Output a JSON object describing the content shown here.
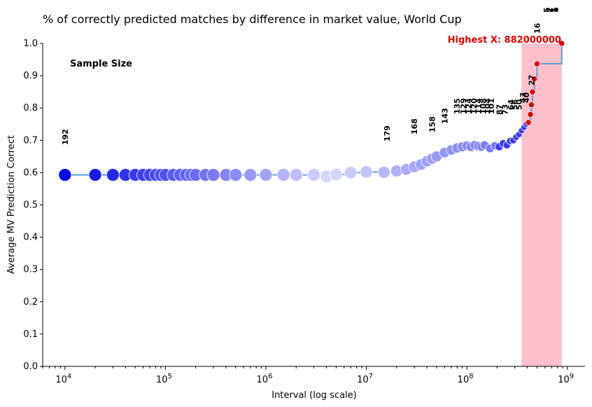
{
  "chart_data": {
    "type": "scatter",
    "title": "% of correctly predicted matches by difference in market value, World Cup",
    "xlabel": "Interval (log scale)",
    "ylabel": "Average MV Prediction Correct",
    "xscale": "log",
    "xlim": [
      6000,
      1500000000
    ],
    "ylim": [
      0,
      1.0
    ],
    "yticks": [
      "0.0",
      "0.1",
      "0.2",
      "0.3",
      "0.4",
      "0.5",
      "0.6",
      "0.7",
      "0.8",
      "0.9",
      "1.0"
    ],
    "xticks": [
      {
        "value": 10000,
        "base": "10",
        "exp": "4"
      },
      {
        "value": 100000,
        "base": "10",
        "exp": "5"
      },
      {
        "value": 1000000,
        "base": "10",
        "exp": "6"
      },
      {
        "value": 10000000,
        "base": "10",
        "exp": "7"
      },
      {
        "value": 100000000,
        "base": "10",
        "exp": "8"
      },
      {
        "value": 1000000000,
        "base": "10",
        "exp": "9"
      }
    ],
    "sample_size_label": "Sample Size",
    "highest_label": "Highest X: 882000000",
    "highlight_range": [
      350000000,
      882000000
    ],
    "highlight_color": "#ffc0cb",
    "line_color": "#5b9bd5",
    "point_color_high": "#0000ee",
    "point_color_low": "#e6e6fa",
    "red_color": "#e00000",
    "points": [
      {
        "x": 10000,
        "y": 0.593,
        "n": 192
      },
      {
        "x": 20000,
        "y": 0.593,
        "n": 192
      },
      {
        "x": 30000,
        "y": 0.593,
        "n": 192
      },
      {
        "x": 40000,
        "y": 0.593,
        "n": 192
      },
      {
        "x": 50000,
        "y": 0.593,
        "n": 192
      },
      {
        "x": 60000,
        "y": 0.593,
        "n": 192
      },
      {
        "x": 70000,
        "y": 0.593,
        "n": 192
      },
      {
        "x": 80000,
        "y": 0.593,
        "n": 192
      },
      {
        "x": 90000,
        "y": 0.593,
        "n": 192
      },
      {
        "x": 100000,
        "y": 0.593,
        "n": 192
      },
      {
        "x": 120000,
        "y": 0.593,
        "n": 192
      },
      {
        "x": 140000,
        "y": 0.593,
        "n": 192
      },
      {
        "x": 160000,
        "y": 0.593,
        "n": 192
      },
      {
        "x": 180000,
        "y": 0.593,
        "n": 192
      },
      {
        "x": 200000,
        "y": 0.593,
        "n": 192
      },
      {
        "x": 250000,
        "y": 0.593,
        "n": 192
      },
      {
        "x": 300000,
        "y": 0.593,
        "n": 192
      },
      {
        "x": 400000,
        "y": 0.593,
        "n": 192
      },
      {
        "x": 500000,
        "y": 0.593,
        "n": 192
      },
      {
        "x": 700000,
        "y": 0.593,
        "n": 192
      },
      {
        "x": 1000000,
        "y": 0.593,
        "n": 192
      },
      {
        "x": 1500000,
        "y": 0.593,
        "n": 192
      },
      {
        "x": 2000000,
        "y": 0.593,
        "n": 192
      },
      {
        "x": 3000000,
        "y": 0.593,
        "n": 192
      },
      {
        "x": 4000000,
        "y": 0.588,
        "n": 190
      },
      {
        "x": 5000000,
        "y": 0.594,
        "n": 189
      },
      {
        "x": 7000000,
        "y": 0.6,
        "n": 185
      },
      {
        "x": 10000000,
        "y": 0.602,
        "n": 183
      },
      {
        "x": 15000000,
        "y": 0.601,
        "n": 179
      },
      {
        "x": 20000000,
        "y": 0.605,
        "n": 175
      },
      {
        "x": 25000000,
        "y": 0.61,
        "n": 172
      },
      {
        "x": 30000000,
        "y": 0.618,
        "n": 168
      },
      {
        "x": 35000000,
        "y": 0.625,
        "n": 164
      },
      {
        "x": 40000000,
        "y": 0.635,
        "n": 160
      },
      {
        "x": 45000000,
        "y": 0.643,
        "n": 158
      },
      {
        "x": 50000000,
        "y": 0.65,
        "n": 154
      },
      {
        "x": 60000000,
        "y": 0.662,
        "n": 143
      },
      {
        "x": 70000000,
        "y": 0.67,
        "n": 138
      },
      {
        "x": 80000000,
        "y": 0.676,
        "n": 135
      },
      {
        "x": 90000000,
        "y": 0.68,
        "n": 129
      },
      {
        "x": 100000000,
        "y": 0.683,
        "n": 124
      },
      {
        "x": 110000000,
        "y": 0.68,
        "n": 120
      },
      {
        "x": 120000000,
        "y": 0.685,
        "n": 114
      },
      {
        "x": 130000000,
        "y": 0.682,
        "n": 110
      },
      {
        "x": 140000000,
        "y": 0.68,
        "n": 108
      },
      {
        "x": 150000000,
        "y": 0.685,
        "n": 104
      },
      {
        "x": 170000000,
        "y": 0.675,
        "n": 101
      },
      {
        "x": 190000000,
        "y": 0.683,
        "n": 94
      },
      {
        "x": 210000000,
        "y": 0.68,
        "n": 87
      },
      {
        "x": 230000000,
        "y": 0.69,
        "n": 80
      },
      {
        "x": 250000000,
        "y": 0.685,
        "n": 73
      },
      {
        "x": 270000000,
        "y": 0.698,
        "n": 68
      },
      {
        "x": 290000000,
        "y": 0.7,
        "n": 64
      },
      {
        "x": 310000000,
        "y": 0.71,
        "n": 56
      },
      {
        "x": 330000000,
        "y": 0.718,
        "n": 50
      },
      {
        "x": 350000000,
        "y": 0.73,
        "n": 46
      },
      {
        "x": 370000000,
        "y": 0.74,
        "n": 43
      },
      {
        "x": 390000000,
        "y": 0.75,
        "n": 40
      },
      {
        "x": 410000000,
        "y": 0.755,
        "n": 36
      },
      {
        "x": 430000000,
        "y": 0.78,
        "n": 30
      },
      {
        "x": 440000000,
        "y": 0.81,
        "n": 27
      },
      {
        "x": 450000000,
        "y": 0.85,
        "n": 22
      },
      {
        "x": 470000000,
        "y": 0.89,
        "n": 18
      },
      {
        "x": 500000000,
        "y": 0.937,
        "n": 16
      },
      {
        "x": 880000000,
        "y": 1.0,
        "n": 5
      }
    ],
    "annotations": [
      {
        "x": 10000,
        "text": "192"
      },
      {
        "x": 16000000,
        "text": "179"
      },
      {
        "x": 30000000,
        "text": "168"
      },
      {
        "x": 45000000,
        "text": "158"
      },
      {
        "x": 60000000,
        "text": "143"
      },
      {
        "x": 80000000,
        "text": "135"
      },
      {
        "x": 92000000,
        "text": "129"
      },
      {
        "x": 104000000,
        "text": "124"
      },
      {
        "x": 117000000,
        "text": "120"
      },
      {
        "x": 130000000,
        "text": "114"
      },
      {
        "x": 145000000,
        "text": "108"
      },
      {
        "x": 160000000,
        "text": "104"
      },
      {
        "x": 175000000,
        "text": "101"
      },
      {
        "x": 210000000,
        "text": "87"
      },
      {
        "x": 240000000,
        "text": "73"
      },
      {
        "x": 275000000,
        "text": "64"
      },
      {
        "x": 300000000,
        "text": "56"
      },
      {
        "x": 330000000,
        "text": "50"
      },
      {
        "x": 360000000,
        "text": "43"
      },
      {
        "x": 390000000,
        "text": "40"
      },
      {
        "x": 440000000,
        "text": "27"
      },
      {
        "x": 500000000,
        "text": "16"
      },
      {
        "x": 620000000,
        "text": "5"
      },
      {
        "x": 665000000,
        "text": "2"
      },
      {
        "x": 710000000,
        "text": "1"
      },
      {
        "x": 730000000,
        "text": "1"
      },
      {
        "x": 745000000,
        "text": "1"
      },
      {
        "x": 760000000,
        "text": "1"
      }
    ]
  }
}
